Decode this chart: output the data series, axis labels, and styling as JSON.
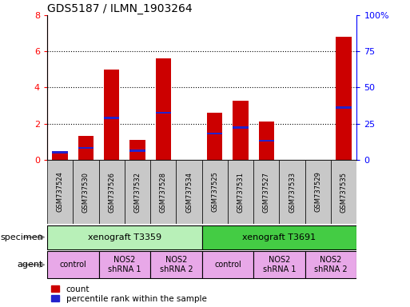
{
  "title": "GDS5187 / ILMN_1903264",
  "samples": [
    "GSM737524",
    "GSM737530",
    "GSM737526",
    "GSM737532",
    "GSM737528",
    "GSM737534",
    "GSM737525",
    "GSM737531",
    "GSM737527",
    "GSM737533",
    "GSM737529",
    "GSM737535"
  ],
  "counts": [
    0.4,
    1.3,
    5.0,
    1.1,
    5.6,
    0.0,
    2.6,
    3.25,
    2.1,
    0.0,
    0.0,
    6.8
  ],
  "blue_heights_on_left_axis": [
    0.42,
    0.65,
    2.3,
    0.5,
    2.6,
    0.0,
    1.45,
    1.8,
    1.05,
    0.0,
    0.0,
    2.9
  ],
  "ylim_left": [
    0,
    8
  ],
  "ylim_right": [
    0,
    100
  ],
  "yticks_left": [
    0,
    2,
    4,
    6,
    8
  ],
  "ytick_labels_left": [
    "0",
    "2",
    "4",
    "6",
    "8"
  ],
  "yticks_right": [
    0,
    25,
    50,
    75,
    100
  ],
  "ytick_labels_right": [
    "0",
    "25",
    "50",
    "75",
    "100%"
  ],
  "specimen_labels": [
    "xenograft T3359",
    "xenograft T3691"
  ],
  "specimen_col_spans": [
    [
      0,
      6
    ],
    [
      6,
      12
    ]
  ],
  "specimen_colors": [
    "#b0f0b0",
    "#50d050"
  ],
  "agent_groups": [
    {
      "label": "control",
      "col_span": [
        0,
        2
      ]
    },
    {
      "label": "NOS2\nshRNA 1",
      "col_span": [
        2,
        4
      ]
    },
    {
      "label": "NOS2\nshRNA 2",
      "col_span": [
        4,
        6
      ]
    },
    {
      "label": "control",
      "col_span": [
        6,
        8
      ]
    },
    {
      "label": "NOS2\nshRNA 1",
      "col_span": [
        8,
        10
      ]
    },
    {
      "label": "NOS2\nshRNA 2",
      "col_span": [
        10,
        12
      ]
    }
  ],
  "bar_color_red": "#cc0000",
  "bar_color_blue": "#2222cc",
  "specimen_color_light": "#b8f0b8",
  "specimen_color_dark": "#44cc44",
  "agent_color": "#e8a8e8",
  "bar_width": 0.6,
  "n_samples": 12,
  "gray_cell_color": "#c8c8c8"
}
